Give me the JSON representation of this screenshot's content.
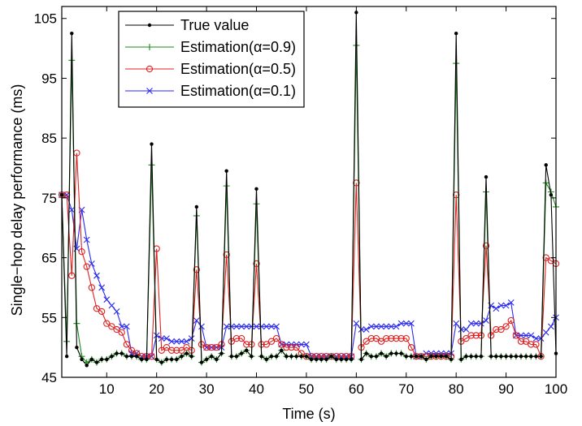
{
  "chart_data": {
    "type": "line",
    "title": "",
    "xlabel": "Time (s)",
    "ylabel": "Single−hop delay performance (ms)",
    "xlim": [
      1,
      100
    ],
    "ylim": [
      45,
      107
    ],
    "x_ticks": [
      10,
      20,
      30,
      40,
      50,
      60,
      70,
      80,
      90,
      100
    ],
    "y_ticks": [
      45,
      55,
      65,
      75,
      85,
      95,
      105
    ],
    "grid": false,
    "legend_position": "top-left",
    "series": [
      {
        "name": "True value",
        "color": "#000000",
        "marker": "dot",
        "x": [
          1,
          2,
          3,
          4,
          5,
          6,
          7,
          8,
          9,
          10,
          11,
          12,
          13,
          14,
          15,
          16,
          17,
          18,
          19,
          20,
          21,
          22,
          23,
          24,
          25,
          26,
          27,
          28,
          29,
          30,
          31,
          32,
          33,
          34,
          35,
          36,
          37,
          38,
          39,
          40,
          41,
          42,
          43,
          44,
          45,
          46,
          47,
          48,
          49,
          50,
          51,
          52,
          53,
          54,
          55,
          56,
          57,
          58,
          59,
          60,
          61,
          62,
          63,
          64,
          65,
          66,
          67,
          68,
          69,
          70,
          71,
          72,
          73,
          74,
          75,
          76,
          77,
          78,
          79,
          80,
          81,
          82,
          83,
          84,
          85,
          86,
          87,
          88,
          89,
          90,
          91,
          92,
          93,
          94,
          95,
          96,
          97,
          98,
          99,
          100
        ],
        "values": [
          75.5,
          48.5,
          102.5,
          50,
          48,
          47,
          48,
          47.5,
          48,
          48,
          48.5,
          49,
          49,
          48.5,
          48.5,
          48.5,
          48,
          48,
          84,
          48,
          47.5,
          48,
          48,
          48,
          48.5,
          49,
          48.5,
          73.5,
          47.5,
          48,
          48.5,
          48,
          49,
          79.5,
          48.5,
          48.5,
          49,
          49.5,
          48.5,
          76.5,
          48.5,
          48,
          48.5,
          48.5,
          49.5,
          48.5,
          48.5,
          48.5,
          48.5,
          48.5,
          48,
          48,
          48,
          48,
          48.5,
          48,
          48,
          48,
          48,
          106,
          48,
          49,
          48.5,
          48.5,
          49,
          48.5,
          49,
          49,
          49,
          48.5,
          48.5,
          48.5,
          48.5,
          48,
          48.5,
          48.5,
          48.5,
          48.5,
          48,
          102.5,
          48,
          48.5,
          48.5,
          48.5,
          48.5,
          78.5,
          48.5,
          48.5,
          48.5,
          48.5,
          48.5,
          48.5,
          48.5,
          48.5,
          48.5,
          48.5,
          48.5,
          80.5,
          75.5,
          49
        ]
      },
      {
        "name": "Estimation(α=0.9)",
        "color": "#1a8a1a",
        "marker": "plus",
        "x": [
          1,
          2,
          3,
          4,
          5,
          6,
          7,
          8,
          9,
          10,
          11,
          12,
          13,
          14,
          15,
          16,
          17,
          18,
          19,
          20,
          21,
          22,
          23,
          24,
          25,
          26,
          27,
          28,
          29,
          30,
          31,
          32,
          33,
          34,
          35,
          36,
          37,
          38,
          39,
          40,
          41,
          42,
          43,
          44,
          45,
          46,
          47,
          48,
          49,
          50,
          51,
          52,
          53,
          54,
          55,
          56,
          57,
          58,
          59,
          60,
          61,
          62,
          63,
          64,
          65,
          66,
          67,
          68,
          69,
          70,
          71,
          72,
          73,
          74,
          75,
          76,
          77,
          78,
          79,
          80,
          81,
          82,
          83,
          84,
          85,
          86,
          87,
          88,
          89,
          90,
          91,
          92,
          93,
          94,
          95,
          96,
          97,
          98,
          99,
          100
        ],
        "values": [
          75.5,
          51,
          98,
          54,
          48.5,
          47.5,
          48,
          47.5,
          48,
          48,
          48.5,
          49,
          49,
          48.5,
          48.5,
          48.5,
          48,
          48,
          80.5,
          48,
          47.5,
          48,
          48,
          48,
          48.5,
          49,
          48.5,
          72,
          47.5,
          48,
          48.5,
          48,
          49,
          77,
          48.5,
          48.5,
          49,
          49.5,
          48.5,
          74,
          48.5,
          48,
          48.5,
          48.5,
          49.5,
          48.5,
          48.5,
          48.5,
          48.5,
          48.5,
          48,
          48,
          48,
          48,
          48.5,
          48,
          48,
          48,
          48,
          100.5,
          48,
          49,
          48.5,
          48.5,
          49,
          48.5,
          49,
          49,
          49,
          48.5,
          48.5,
          48.5,
          48.5,
          48,
          48.5,
          48.5,
          48.5,
          48.5,
          48,
          97.5,
          48,
          48.5,
          48.5,
          48.5,
          48.5,
          76,
          48.5,
          48.5,
          48.5,
          48.5,
          48.5,
          48.5,
          48.5,
          48.5,
          48.5,
          48.5,
          48.5,
          77.5,
          76,
          73.5
        ]
      },
      {
        "name": "Estimation(α=0.5)",
        "color": "#e02020",
        "marker": "circle",
        "x": [
          1,
          2,
          3,
          4,
          5,
          6,
          7,
          8,
          9,
          10,
          11,
          12,
          13,
          14,
          15,
          16,
          17,
          18,
          19,
          20,
          21,
          22,
          23,
          24,
          25,
          26,
          27,
          28,
          29,
          30,
          31,
          32,
          33,
          34,
          35,
          36,
          37,
          38,
          39,
          40,
          41,
          42,
          43,
          44,
          45,
          46,
          47,
          48,
          49,
          50,
          51,
          52,
          53,
          54,
          55,
          56,
          57,
          58,
          59,
          60,
          61,
          62,
          63,
          64,
          65,
          66,
          67,
          68,
          69,
          70,
          71,
          72,
          73,
          74,
          75,
          76,
          77,
          78,
          79,
          80,
          81,
          82,
          83,
          84,
          85,
          86,
          87,
          88,
          89,
          90,
          91,
          92,
          93,
          94,
          95,
          96,
          97,
          98,
          99,
          100
        ],
        "values": [
          75.5,
          75.5,
          62,
          82.5,
          66,
          63.5,
          60,
          56.5,
          56,
          54,
          53.5,
          53,
          52.5,
          50.5,
          49.5,
          49,
          48.5,
          48.5,
          48.5,
          66.5,
          49.5,
          50,
          49.5,
          49.5,
          49.5,
          50,
          49.5,
          63,
          50.5,
          50,
          50,
          50,
          50.5,
          65.5,
          51,
          51.5,
          51.5,
          50.5,
          50.5,
          64,
          50.5,
          50.5,
          51,
          51.5,
          50.5,
          50,
          50,
          50,
          49,
          48.5,
          48.5,
          48.5,
          48.5,
          48.5,
          48.5,
          48.5,
          48.5,
          48.5,
          48.5,
          77.5,
          50,
          51,
          51.5,
          51.5,
          51,
          51.5,
          51.5,
          51.5,
          51.5,
          51.5,
          50,
          48.5,
          48.5,
          48.5,
          48.5,
          48.5,
          48.5,
          48.5,
          48.5,
          75.5,
          51,
          51.5,
          52,
          52,
          52,
          67,
          52,
          53,
          53,
          53.5,
          54.5,
          52,
          51,
          51,
          50.5,
          50.5,
          48.5,
          65,
          64.5,
          64
        ]
      },
      {
        "name": "Estimation(α=0.1)",
        "color": "#2a2af0",
        "marker": "cross",
        "x": [
          1,
          2,
          3,
          4,
          5,
          6,
          7,
          8,
          9,
          10,
          11,
          12,
          13,
          14,
          15,
          16,
          17,
          18,
          19,
          20,
          21,
          22,
          23,
          24,
          25,
          26,
          27,
          28,
          29,
          30,
          31,
          32,
          33,
          34,
          35,
          36,
          37,
          38,
          39,
          40,
          41,
          42,
          43,
          44,
          45,
          46,
          47,
          48,
          49,
          50,
          51,
          52,
          53,
          54,
          55,
          56,
          57,
          58,
          59,
          60,
          61,
          62,
          63,
          64,
          65,
          66,
          67,
          68,
          69,
          70,
          71,
          72,
          73,
          74,
          75,
          76,
          77,
          78,
          79,
          80,
          81,
          82,
          83,
          84,
          85,
          86,
          87,
          88,
          89,
          90,
          91,
          92,
          93,
          94,
          95,
          96,
          97,
          98,
          99,
          100
        ],
        "values": [
          75.5,
          75.5,
          73,
          66.5,
          73,
          68,
          64,
          62,
          60,
          58,
          57,
          56,
          53.5,
          53.5,
          49,
          49,
          48.5,
          48.5,
          48.5,
          52,
          51.5,
          51.5,
          51,
          51,
          51,
          51,
          51.5,
          54.5,
          53.5,
          50,
          50,
          50,
          50,
          53.5,
          53.5,
          53.5,
          53.5,
          53.5,
          53.5,
          53.5,
          53.5,
          53.5,
          53.5,
          53.5,
          50.5,
          50.5,
          50.5,
          50.5,
          50.5,
          50.5,
          48.5,
          48.5,
          48.5,
          48.5,
          48.5,
          48.5,
          48.5,
          48.5,
          48.5,
          54,
          53,
          53,
          53.5,
          53.5,
          53.5,
          53.5,
          53.5,
          53.5,
          54,
          54,
          54,
          48.5,
          48.5,
          49,
          49,
          49,
          49,
          49,
          49,
          54,
          53,
          53,
          54,
          54,
          54,
          54.5,
          57,
          56.5,
          57,
          57,
          57.5,
          52,
          52,
          52,
          52,
          51.5,
          51.5,
          52.5,
          53.5,
          55
        ]
      }
    ]
  }
}
